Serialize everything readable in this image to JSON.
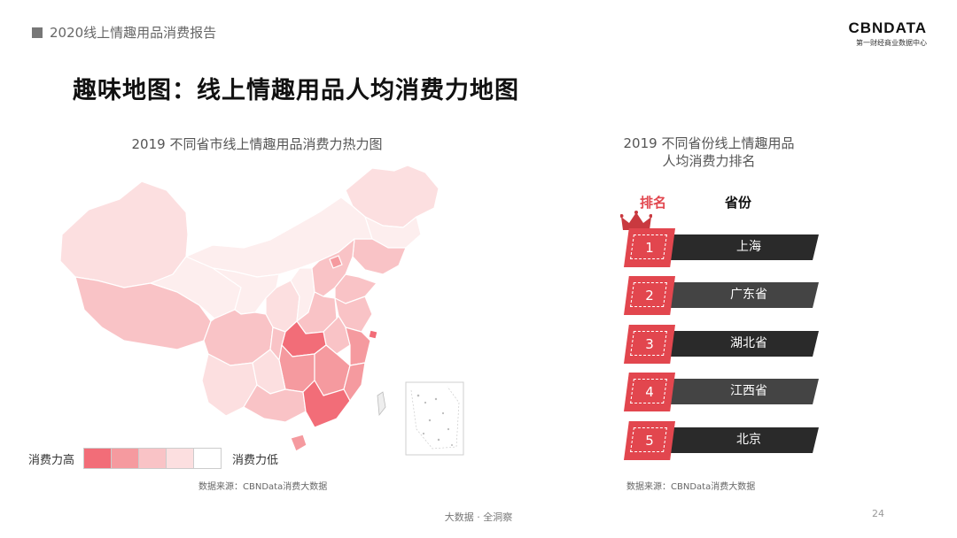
{
  "header": {
    "report_title": "2020线上情趣用品消费报告",
    "logo_text": "CBNDATA",
    "logo_subtitle": "第一财经商业数据中心"
  },
  "page_title": "趣味地图：线上情趣用品人均消费力地图",
  "map": {
    "title": "2019 不同省市线上情趣用品消费力热力图",
    "legend": {
      "high_label": "消费力高",
      "low_label": "消费力低",
      "colors": [
        "#f26d78",
        "#f59a9f",
        "#f9c3c6",
        "#fcdfe0",
        "#ffffff"
      ]
    },
    "source": "数据来源：CBNData消费大数据",
    "region_colors": {
      "highest": "#f26d78",
      "high": "#f59a9f",
      "mid": "#f9c3c6",
      "low": "#fcdfe0",
      "lowest": "#fdeeee"
    }
  },
  "ranking": {
    "title_line1": "2019 不同省份线上情趣用品",
    "title_line2": "人均消费力排名",
    "col_rank": "排名",
    "col_province": "省份",
    "crown_icon": "crown-icon",
    "items": [
      {
        "rank": "1",
        "province": "上海"
      },
      {
        "rank": "2",
        "province": "广东省"
      },
      {
        "rank": "3",
        "province": "湖北省"
      },
      {
        "rank": "4",
        "province": "江西省"
      },
      {
        "rank": "5",
        "province": "北京"
      }
    ],
    "source": "数据来源：CBNData消费大数据"
  },
  "footer": {
    "center_text": "大数据 · 全洞察",
    "page_number": "24"
  }
}
